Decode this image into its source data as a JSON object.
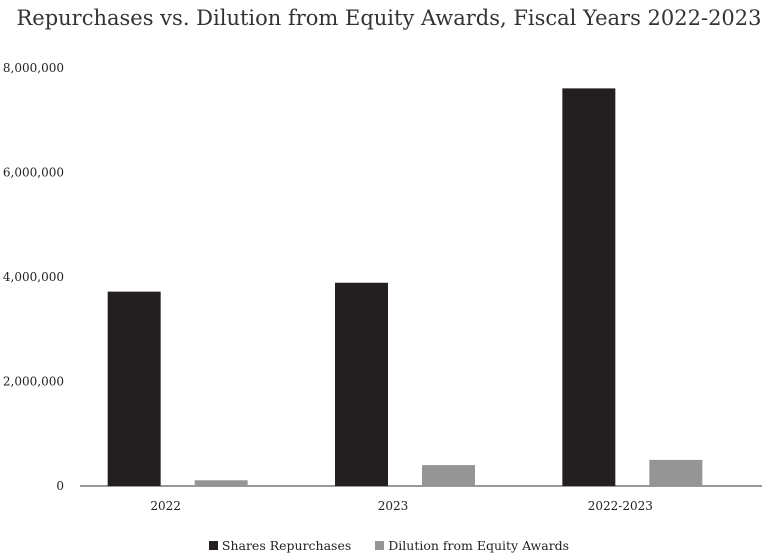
{
  "chart_data": {
    "type": "bar",
    "title": "Repurchases vs. Dilution from Equity Awards, Fiscal Years 2022-2023",
    "categories": [
      "2022",
      "2023",
      "2022-2023"
    ],
    "series": [
      {
        "name": "Shares Repurchases",
        "color": "#231f20",
        "values": [
          3720000,
          3890000,
          7610000
        ]
      },
      {
        "name": "Dilution from Equity Awards",
        "color": "#959595",
        "values": [
          110000,
          400000,
          500000
        ]
      }
    ],
    "ylim": [
      0,
      8000000
    ],
    "yticks": [
      0,
      2000000,
      4000000,
      6000000,
      8000000
    ],
    "ytick_labels": [
      "0",
      "2,000,000",
      "4,000,000",
      "6,000,000",
      "8,000,000"
    ],
    "grid": false,
    "legend": "bottom"
  }
}
